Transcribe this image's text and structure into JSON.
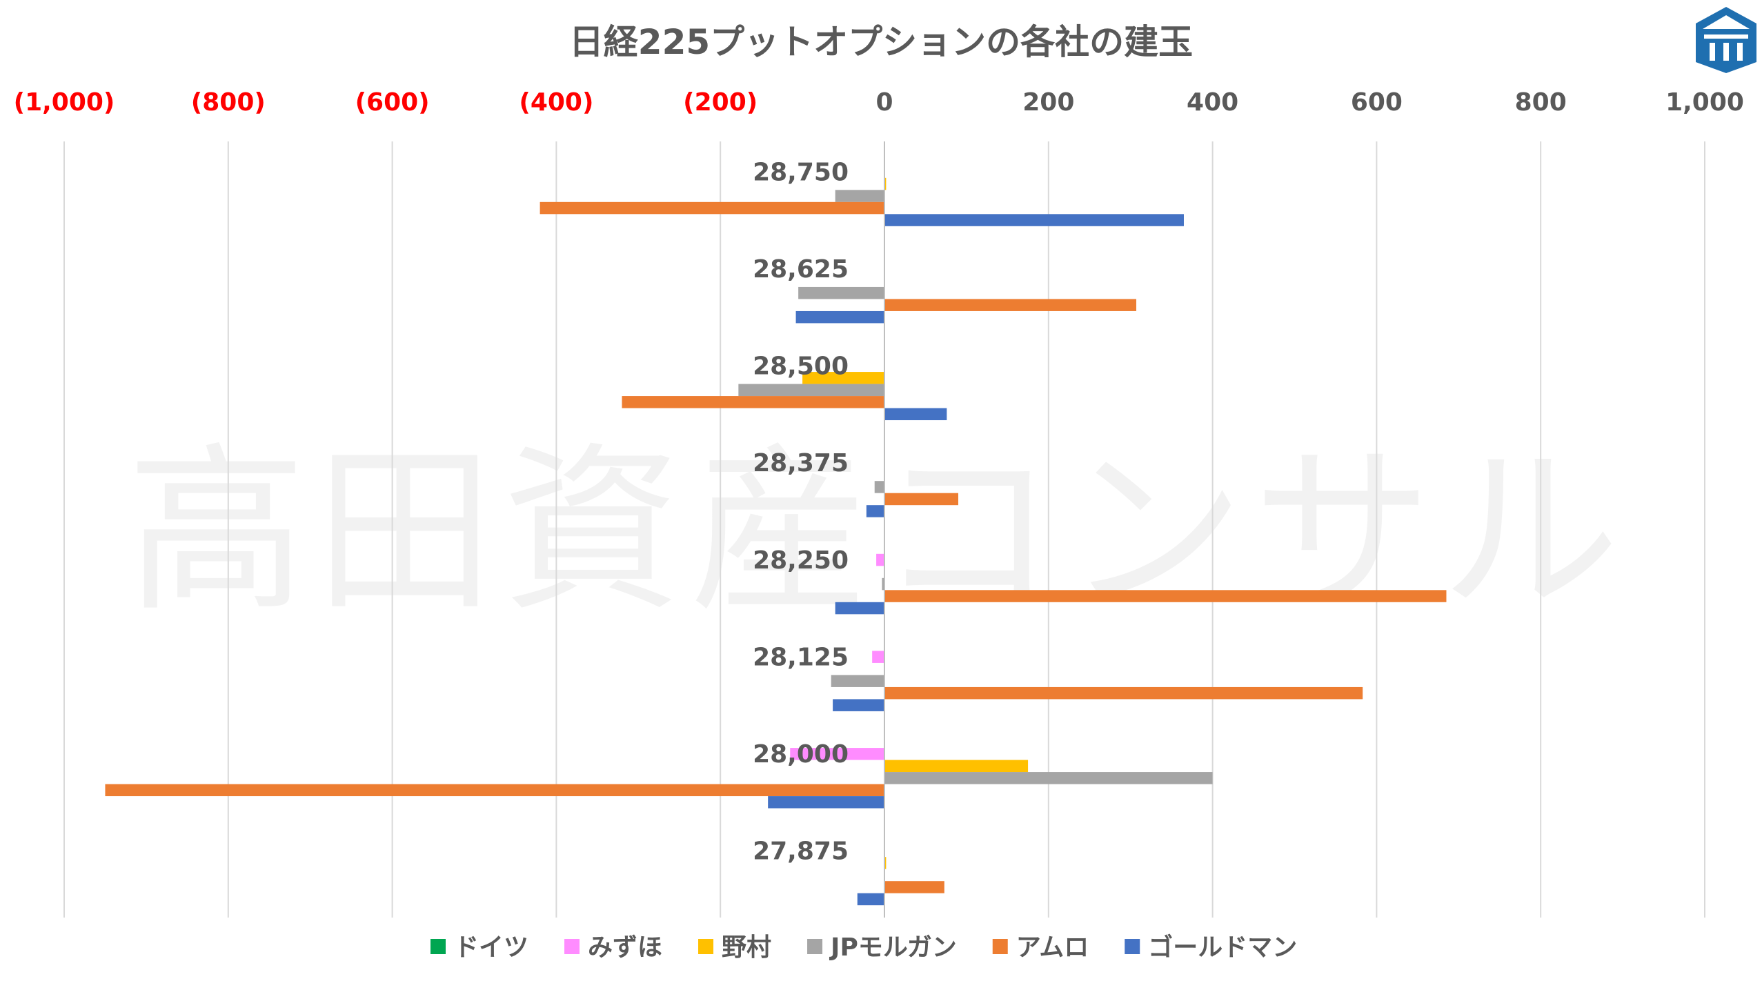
{
  "watermark": "高田資産コンサル",
  "logo": {
    "icon": "takata-logo-icon",
    "color": "#1f6fb0"
  },
  "chart_data": {
    "type": "bar",
    "orientation": "horizontal",
    "title": "日経225プットオプションの各社の建玉",
    "xlim": [
      -1000,
      1000
    ],
    "x_ticks": [
      -1000,
      -800,
      -600,
      -400,
      -200,
      0,
      200,
      400,
      600,
      800,
      1000
    ],
    "x_tick_labels": [
      "(1,000)",
      "(800)",
      "(600)",
      "(400)",
      "(200)",
      "0",
      "200",
      "400",
      "600",
      "800",
      "1,000"
    ],
    "negative_tick_color": "#ff0000",
    "positive_tick_color": "#595959",
    "grid": true,
    "legend_position": "bottom",
    "categories": [
      "28,750",
      "28,625",
      "28,500",
      "28,375",
      "28,250",
      "28,125",
      "28,000",
      "27,875"
    ],
    "series": [
      {
        "name": "ドイツ",
        "color": "#00a651",
        "values": [
          0,
          0,
          0,
          0,
          0,
          0,
          0,
          0
        ]
      },
      {
        "name": "みずほ",
        "color": "#ff8cff",
        "values": [
          0,
          0,
          0,
          0,
          -10,
          -15,
          -115,
          0
        ]
      },
      {
        "name": "野村",
        "color": "#ffc000",
        "values": [
          2,
          0,
          -100,
          0,
          0,
          0,
          175,
          2
        ]
      },
      {
        "name": "JPモルガン",
        "color": "#a5a5a5",
        "values": [
          -60,
          -105,
          -178,
          -12,
          -3,
          -65,
          400,
          0
        ]
      },
      {
        "name": "アムロ",
        "color": "#ed7d31",
        "values": [
          -420,
          307,
          -320,
          90,
          685,
          583,
          -950,
          73
        ]
      },
      {
        "name": "ゴールドマン",
        "color": "#4472c4",
        "values": [
          365,
          -108,
          76,
          -22,
          -60,
          -63,
          -142,
          -33
        ]
      }
    ]
  }
}
